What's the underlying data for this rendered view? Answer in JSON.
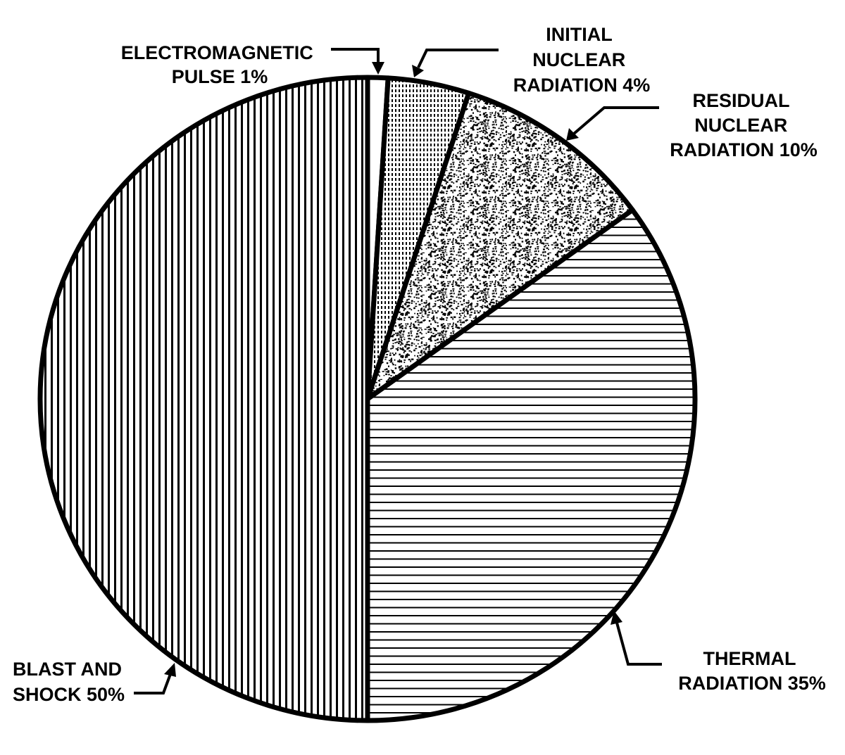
{
  "chart_data": {
    "type": "pie",
    "title": "",
    "start": "top",
    "direction": "clockwise",
    "slices": [
      {
        "label_lines": [
          "ELECTROMAGNETIC",
          "PULSE 1%"
        ],
        "value": 1,
        "fill": "blank",
        "color": "#ffffff"
      },
      {
        "label_lines": [
          "INITIAL",
          "NUCLEAR",
          "RADIATION 4%"
        ],
        "value": 4,
        "fill": "fine-dots",
        "color": "#000000"
      },
      {
        "label_lines": [
          "RESIDUAL",
          "NUCLEAR",
          "RADIATION 10%"
        ],
        "value": 10,
        "fill": "stipple",
        "color": "#000000"
      },
      {
        "label_lines": [
          "THERMAL",
          "RADIATION 35%"
        ],
        "value": 35,
        "fill": "horizontal-lines",
        "color": "#000000"
      },
      {
        "label_lines": [
          "BLAST AND",
          "SHOCK 50%"
        ],
        "value": 50,
        "fill": "vertical-lines",
        "color": "#000000"
      }
    ]
  }
}
